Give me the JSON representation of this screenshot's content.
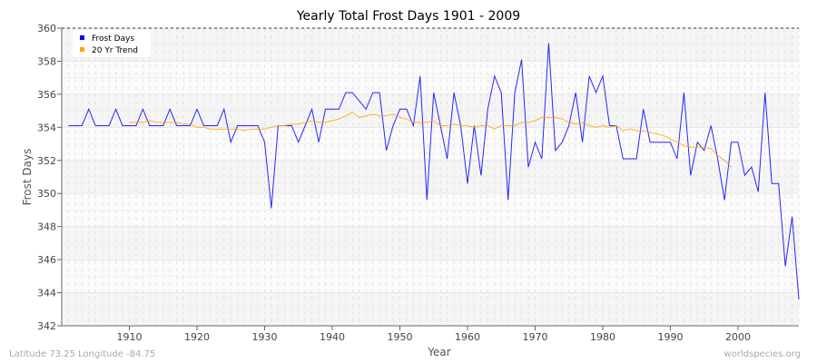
{
  "chart_data": {
    "type": "line",
    "title": "Yearly Total Frost Days 1901 - 2009",
    "xlabel": "Year",
    "ylabel": "Frost Days",
    "xlim": [
      1900,
      2009
    ],
    "ylim": [
      342,
      360
    ],
    "xticks": [
      1910,
      1920,
      1930,
      1940,
      1950,
      1960,
      1970,
      1980,
      1990,
      2000
    ],
    "yticks": [
      342,
      344,
      346,
      348,
      350,
      352,
      354,
      356,
      358,
      360
    ],
    "grid": true,
    "legend_position": "top-left",
    "series": [
      {
        "name": "Frost Days",
        "color": "#0000ff",
        "x_start": 1901,
        "values": [
          354.1,
          354.1,
          354.1,
          355.1,
          354.1,
          354.1,
          354.1,
          355.1,
          354.1,
          354.1,
          354.1,
          355.1,
          354.1,
          354.1,
          354.1,
          355.1,
          354.1,
          354.1,
          354.1,
          355.1,
          354.1,
          354.1,
          354.1,
          355.1,
          353.1,
          354.1,
          354.1,
          354.1,
          354.1,
          353.1,
          349.1,
          354.1,
          354.1,
          354.1,
          353.1,
          354.1,
          355.1,
          353.1,
          355.1,
          355.1,
          355.1,
          356.1,
          356.1,
          355.6,
          355.1,
          356.1,
          356.1,
          352.6,
          354.1,
          355.1,
          355.1,
          354.1,
          357.1,
          349.6,
          356.1,
          354.1,
          352.1,
          356.1,
          354.1,
          350.6,
          354.1,
          351.1,
          355.1,
          357.1,
          356.1,
          349.6,
          356.1,
          358.1,
          351.6,
          353.1,
          352.1,
          359.1,
          352.6,
          353.1,
          354.1,
          356.1,
          353.1,
          357.1,
          356.1,
          357.1,
          354.1,
          354.1,
          352.1,
          352.1,
          352.1,
          355.1,
          353.1,
          353.1,
          353.1,
          353.1,
          352.1,
          356.1,
          351.1,
          353.1,
          352.6,
          354.1,
          352.1,
          349.6,
          353.1,
          353.1,
          351.1,
          351.6,
          350.1,
          356.1,
          350.6,
          350.6,
          345.6,
          348.6,
          343.6
        ]
      },
      {
        "name": "20 Yr Trend",
        "color": "#ffa500",
        "x_start": 1910,
        "values": [
          354.3,
          354.3,
          354.3,
          354.4,
          354.3,
          354.3,
          354.3,
          354.3,
          354.2,
          354.2,
          354.0,
          354.0,
          353.9,
          353.9,
          353.9,
          353.9,
          353.9,
          353.8,
          353.9,
          353.9,
          353.9,
          354.0,
          354.1,
          354.1,
          354.2,
          354.2,
          354.3,
          354.4,
          354.3,
          354.3,
          354.4,
          354.5,
          354.7,
          354.9,
          354.6,
          354.7,
          354.8,
          354.7,
          354.7,
          354.8,
          354.6,
          354.5,
          354.3,
          354.3,
          354.3,
          354.4,
          354.1,
          354.1,
          354.2,
          354.1,
          354.1,
          354.0,
          354.1,
          354.1,
          353.9,
          354.1,
          354.1,
          354.1,
          354.3,
          354.3,
          354.4,
          354.6,
          354.6,
          354.6,
          354.5,
          354.3,
          354.2,
          354.3,
          354.1,
          354.0,
          354.1,
          354.0,
          354.1,
          353.8,
          353.9,
          353.8,
          353.8,
          353.7,
          353.6,
          353.5,
          353.3,
          353.1,
          352.9,
          352.8,
          352.8,
          352.8,
          352.7,
          352.3,
          352.0,
          351.6
        ]
      }
    ]
  },
  "footer": {
    "left": "Latitude 73.25 Longitude -84.75",
    "right": "worldspecies.org"
  }
}
